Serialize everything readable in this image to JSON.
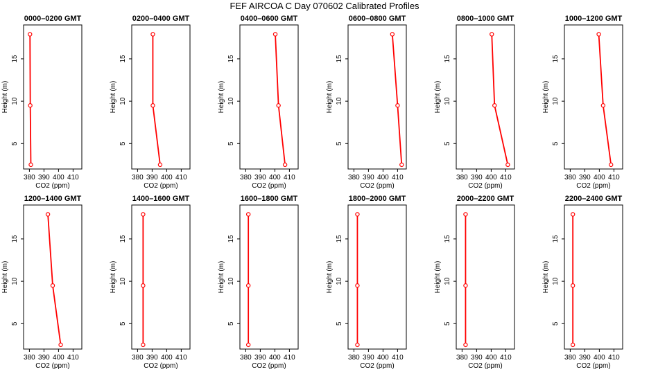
{
  "title": "FEF AIRCOA C  Day 070602  Calibrated Profiles",
  "axis_style": {
    "line_color": "#ff0000",
    "marker_color": "#ff0000",
    "axis_color": "#000000"
  },
  "chart_data": [
    {
      "type": "line",
      "title": "0000–0200 GMT",
      "xlabel": "CO2 (ppm)",
      "ylabel": "Height (m)",
      "xlim": [
        376,
        416
      ],
      "ylim": [
        2,
        19
      ],
      "xticks": [
        "380",
        "390",
        "400",
        "410"
      ],
      "yticks": [
        "5",
        "10",
        "15"
      ],
      "series": [
        {
          "x": [
            381.0,
            380.6,
            380.4
          ],
          "y": [
            2.5,
            9.5,
            17.9
          ]
        }
      ]
    },
    {
      "type": "line",
      "title": "0200–0400 GMT",
      "xlabel": "CO2 (ppm)",
      "ylabel": "Height (m)",
      "xlim": [
        376,
        416
      ],
      "ylim": [
        2,
        19
      ],
      "xticks": [
        "380",
        "390",
        "400",
        "410"
      ],
      "yticks": [
        "5",
        "10",
        "15"
      ],
      "series": [
        {
          "x": [
            395.5,
            390.5,
            390.5
          ],
          "y": [
            2.5,
            9.5,
            17.9
          ]
        }
      ]
    },
    {
      "type": "line",
      "title": "0400–0600 GMT",
      "xlabel": "CO2 (ppm)",
      "ylabel": "Height (m)",
      "xlim": [
        376,
        416
      ],
      "ylim": [
        2,
        19
      ],
      "xticks": [
        "380",
        "390",
        "400",
        "410"
      ],
      "yticks": [
        "5",
        "10",
        "15"
      ],
      "series": [
        {
          "x": [
            407.0,
            402.5,
            400.3
          ],
          "y": [
            2.5,
            9.5,
            17.9
          ]
        }
      ]
    },
    {
      "type": "line",
      "title": "0600–0800 GMT",
      "xlabel": "CO2 (ppm)",
      "ylabel": "Height (m)",
      "xlim": [
        376,
        416
      ],
      "ylim": [
        2,
        19
      ],
      "xticks": [
        "380",
        "390",
        "400",
        "410"
      ],
      "yticks": [
        "5",
        "10",
        "15"
      ],
      "series": [
        {
          "x": [
            412.8,
            410.0,
            406.4
          ],
          "y": [
            2.5,
            9.5,
            17.9
          ]
        }
      ]
    },
    {
      "type": "line",
      "title": "0800–1000 GMT",
      "xlabel": "CO2 (ppm)",
      "ylabel": "Height (m)",
      "xlim": [
        376,
        416
      ],
      "ylim": [
        2,
        19
      ],
      "xticks": [
        "380",
        "390",
        "400",
        "410"
      ],
      "yticks": [
        "5",
        "10",
        "15"
      ],
      "series": [
        {
          "x": [
            411.4,
            402.3,
            400.4
          ],
          "y": [
            2.5,
            9.5,
            17.9
          ]
        }
      ]
    },
    {
      "type": "line",
      "title": "1000–1200 GMT",
      "xlabel": "CO2 (ppm)",
      "ylabel": "Height (m)",
      "xlim": [
        376,
        416
      ],
      "ylim": [
        2,
        19
      ],
      "xticks": [
        "380",
        "390",
        "400",
        "410"
      ],
      "yticks": [
        "5",
        "10",
        "15"
      ],
      "series": [
        {
          "x": [
            408.0,
            402.6,
            399.6
          ],
          "y": [
            2.5,
            9.5,
            17.9
          ]
        }
      ]
    },
    {
      "type": "line",
      "title": "1200–1400 GMT",
      "xlabel": "CO2 (ppm)",
      "ylabel": "Height (m)",
      "xlim": [
        376,
        416
      ],
      "ylim": [
        2,
        19
      ],
      "xticks": [
        "380",
        "390",
        "400",
        "410"
      ],
      "yticks": [
        "5",
        "10",
        "15"
      ],
      "series": [
        {
          "x": [
            401.5,
            396.0,
            392.7
          ],
          "y": [
            2.5,
            9.5,
            17.9
          ]
        }
      ]
    },
    {
      "type": "line",
      "title": "1400–1600 GMT",
      "xlabel": "CO2 (ppm)",
      "ylabel": "Height (m)",
      "xlim": [
        376,
        416
      ],
      "ylim": [
        2,
        19
      ],
      "xticks": [
        "380",
        "390",
        "400",
        "410"
      ],
      "yticks": [
        "5",
        "10",
        "15"
      ],
      "series": [
        {
          "x": [
            383.8,
            383.8,
            383.8
          ],
          "y": [
            2.5,
            9.5,
            17.9
          ]
        }
      ]
    },
    {
      "type": "line",
      "title": "1600–1800 GMT",
      "xlabel": "CO2 (ppm)",
      "ylabel": "Height (m)",
      "xlim": [
        376,
        416
      ],
      "ylim": [
        2,
        19
      ],
      "xticks": [
        "380",
        "390",
        "400",
        "410"
      ],
      "yticks": [
        "5",
        "10",
        "15"
      ],
      "series": [
        {
          "x": [
            381.8,
            381.8,
            381.8
          ],
          "y": [
            2.5,
            9.5,
            17.9
          ]
        }
      ]
    },
    {
      "type": "line",
      "title": "1800–2000 GMT",
      "xlabel": "CO2 (ppm)",
      "ylabel": "Height (m)",
      "xlim": [
        376,
        416
      ],
      "ylim": [
        2,
        19
      ],
      "xticks": [
        "380",
        "390",
        "400",
        "410"
      ],
      "yticks": [
        "5",
        "10",
        "15"
      ],
      "series": [
        {
          "x": [
            382.4,
            382.4,
            382.4
          ],
          "y": [
            2.5,
            9.5,
            17.9
          ]
        }
      ]
    },
    {
      "type": "line",
      "title": "2000–2200 GMT",
      "xlabel": "CO2 (ppm)",
      "ylabel": "Height (m)",
      "xlim": [
        376,
        416
      ],
      "ylim": [
        2,
        19
      ],
      "xticks": [
        "380",
        "390",
        "400",
        "410"
      ],
      "yticks": [
        "5",
        "10",
        "15"
      ],
      "series": [
        {
          "x": [
            382.4,
            382.4,
            382.4
          ],
          "y": [
            2.5,
            9.5,
            17.9
          ]
        }
      ]
    },
    {
      "type": "line",
      "title": "2200–2400 GMT",
      "xlabel": "CO2 (ppm)",
      "ylabel": "Height (m)",
      "xlim": [
        376,
        416
      ],
      "ylim": [
        2,
        19
      ],
      "xticks": [
        "380",
        "390",
        "400",
        "410"
      ],
      "yticks": [
        "5",
        "10",
        "15"
      ],
      "series": [
        {
          "x": [
            381.8,
            381.8,
            381.8
          ],
          "y": [
            2.5,
            9.5,
            17.9
          ]
        }
      ]
    }
  ]
}
